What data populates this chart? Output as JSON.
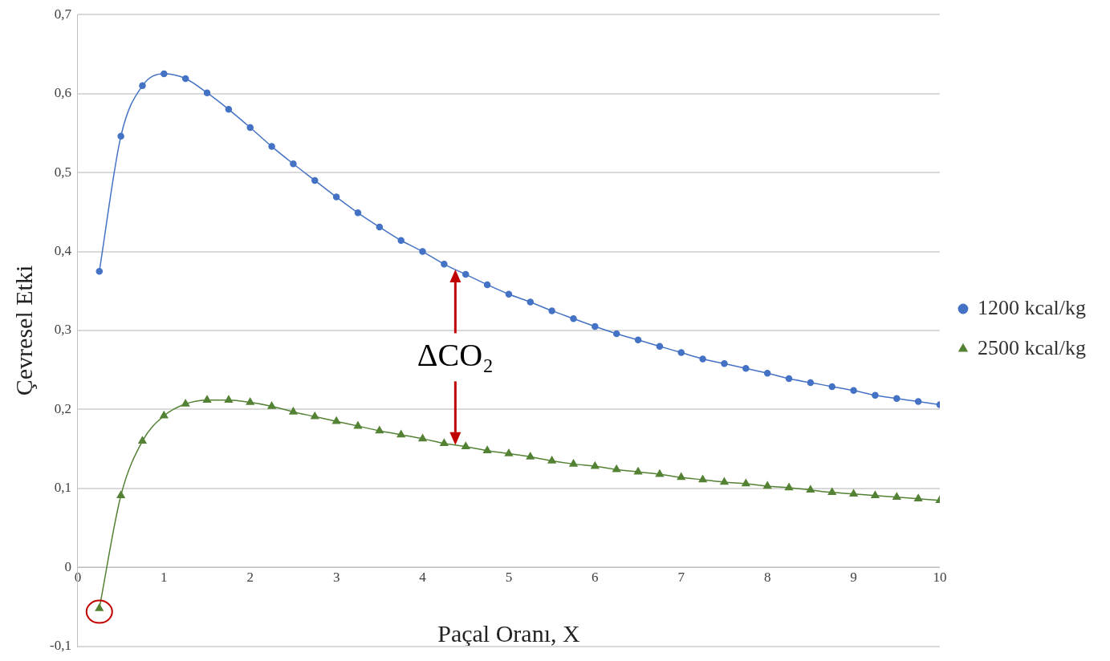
{
  "chart_data": {
    "type": "line",
    "xlabel": "Paçal Oranı, X",
    "ylabel": "Çevresel Etki",
    "x": [
      0.25,
      0.5,
      0.75,
      1,
      1.25,
      1.5,
      1.75,
      2,
      2.25,
      2.5,
      2.75,
      3,
      3.25,
      3.5,
      3.75,
      4,
      4.25,
      4.5,
      4.75,
      5,
      5.25,
      5.5,
      5.75,
      6,
      6.25,
      6.5,
      6.75,
      7,
      7.25,
      7.5,
      7.75,
      8,
      8.25,
      8.5,
      8.75,
      9,
      9.25,
      9.5,
      9.75,
      10
    ],
    "series": [
      {
        "name": "1200 kcal/kg",
        "color": "#4472c4",
        "marker": "circle",
        "values": [
          0.375,
          0.546,
          0.61,
          0.625,
          0.619,
          0.601,
          0.58,
          0.557,
          0.533,
          0.511,
          0.49,
          0.469,
          0.449,
          0.431,
          0.414,
          0.4,
          0.384,
          0.371,
          0.358,
          0.346,
          0.336,
          0.325,
          0.315,
          0.305,
          0.296,
          0.288,
          0.28,
          0.272,
          0.264,
          0.258,
          0.252,
          0.246,
          0.239,
          0.234,
          0.229,
          0.224,
          0.218,
          0.214,
          0.21,
          0.206
        ]
      },
      {
        "name": "2500 kcal/kg",
        "color": "#548235",
        "marker": "triangle",
        "values": [
          -0.052,
          0.091,
          0.16,
          0.192,
          0.207,
          0.212,
          0.212,
          0.209,
          0.204,
          0.197,
          0.191,
          0.185,
          0.179,
          0.173,
          0.168,
          0.163,
          0.157,
          0.153,
          0.148,
          0.144,
          0.14,
          0.135,
          0.131,
          0.128,
          0.124,
          0.121,
          0.118,
          0.114,
          0.111,
          0.108,
          0.106,
          0.103,
          0.101,
          0.098,
          0.095,
          0.093,
          0.091,
          0.089,
          0.087,
          0.085
        ]
      }
    ],
    "xlim": [
      0,
      10
    ],
    "xticks": [
      0,
      1,
      2,
      3,
      4,
      5,
      6,
      7,
      8,
      9,
      10
    ],
    "ylim": [
      -0.1,
      0.7
    ],
    "yticks": [
      {
        "value": -0.1,
        "label": "-0,1"
      },
      0,
      {
        "value": 0.1,
        "label": "0,1"
      },
      {
        "value": 0.2,
        "label": "0,2"
      },
      {
        "value": 0.3,
        "label": "0,3"
      },
      {
        "value": 0.4,
        "label": "0,4"
      },
      {
        "value": 0.5,
        "label": "0,5"
      },
      {
        "value": 0.6,
        "label": "0,6"
      },
      {
        "value": 0.7,
        "label": "0,7"
      }
    ],
    "annotations": [
      "ΔCO₂"
    ],
    "grid": "y",
    "legend": "right",
    "line_style": "solid"
  }
}
